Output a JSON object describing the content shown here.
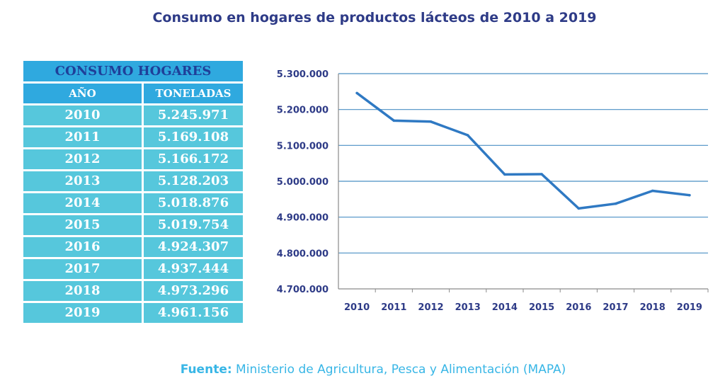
{
  "title": "Consumo en hogares de productos lácteos de 2010 a 2019",
  "table": {
    "title": "CONSUMO HOGARES",
    "col_year": "AÑO",
    "col_tons": "TONELADAS",
    "rows": [
      {
        "year": "2010",
        "tons": "5.245.971"
      },
      {
        "year": "2011",
        "tons": "5.169.108"
      },
      {
        "year": "2012",
        "tons": "5.166.172"
      },
      {
        "year": "2013",
        "tons": "5.128.203"
      },
      {
        "year": "2014",
        "tons": "5.018.876"
      },
      {
        "year": "2015",
        "tons": "5.019.754"
      },
      {
        "year": "2016",
        "tons": "4.924.307"
      },
      {
        "year": "2017",
        "tons": "4.937.444"
      },
      {
        "year": "2018",
        "tons": "4.973.296"
      },
      {
        "year": "2019",
        "tons": "4.961.156"
      }
    ]
  },
  "chart_data": {
    "type": "line",
    "title": "",
    "xlabel": "",
    "ylabel": "",
    "categories": [
      "2010",
      "2011",
      "2012",
      "2013",
      "2014",
      "2015",
      "2016",
      "2017",
      "2018",
      "2019"
    ],
    "series": [
      {
        "values": [
          5245971,
          5169108,
          5166172,
          5128203,
          5018876,
          5019754,
          4924307,
          4937444,
          4973296,
          4961156
        ]
      }
    ],
    "ylim": [
      4700000,
      5300000
    ],
    "yticks": [
      "4.700.000",
      "4.800.000",
      "4.900.000",
      "5.000.000",
      "5.100.000",
      "5.200.000",
      "5.300.000"
    ],
    "grid": true,
    "colors": {
      "line": "#2f79c3",
      "grid": "#4a8fc4",
      "axis": "#8a8a8a"
    }
  },
  "source": {
    "label": "Fuente:",
    "text": " Ministerio de Agricultura, Pesca y Alimentación (MAPA)"
  }
}
